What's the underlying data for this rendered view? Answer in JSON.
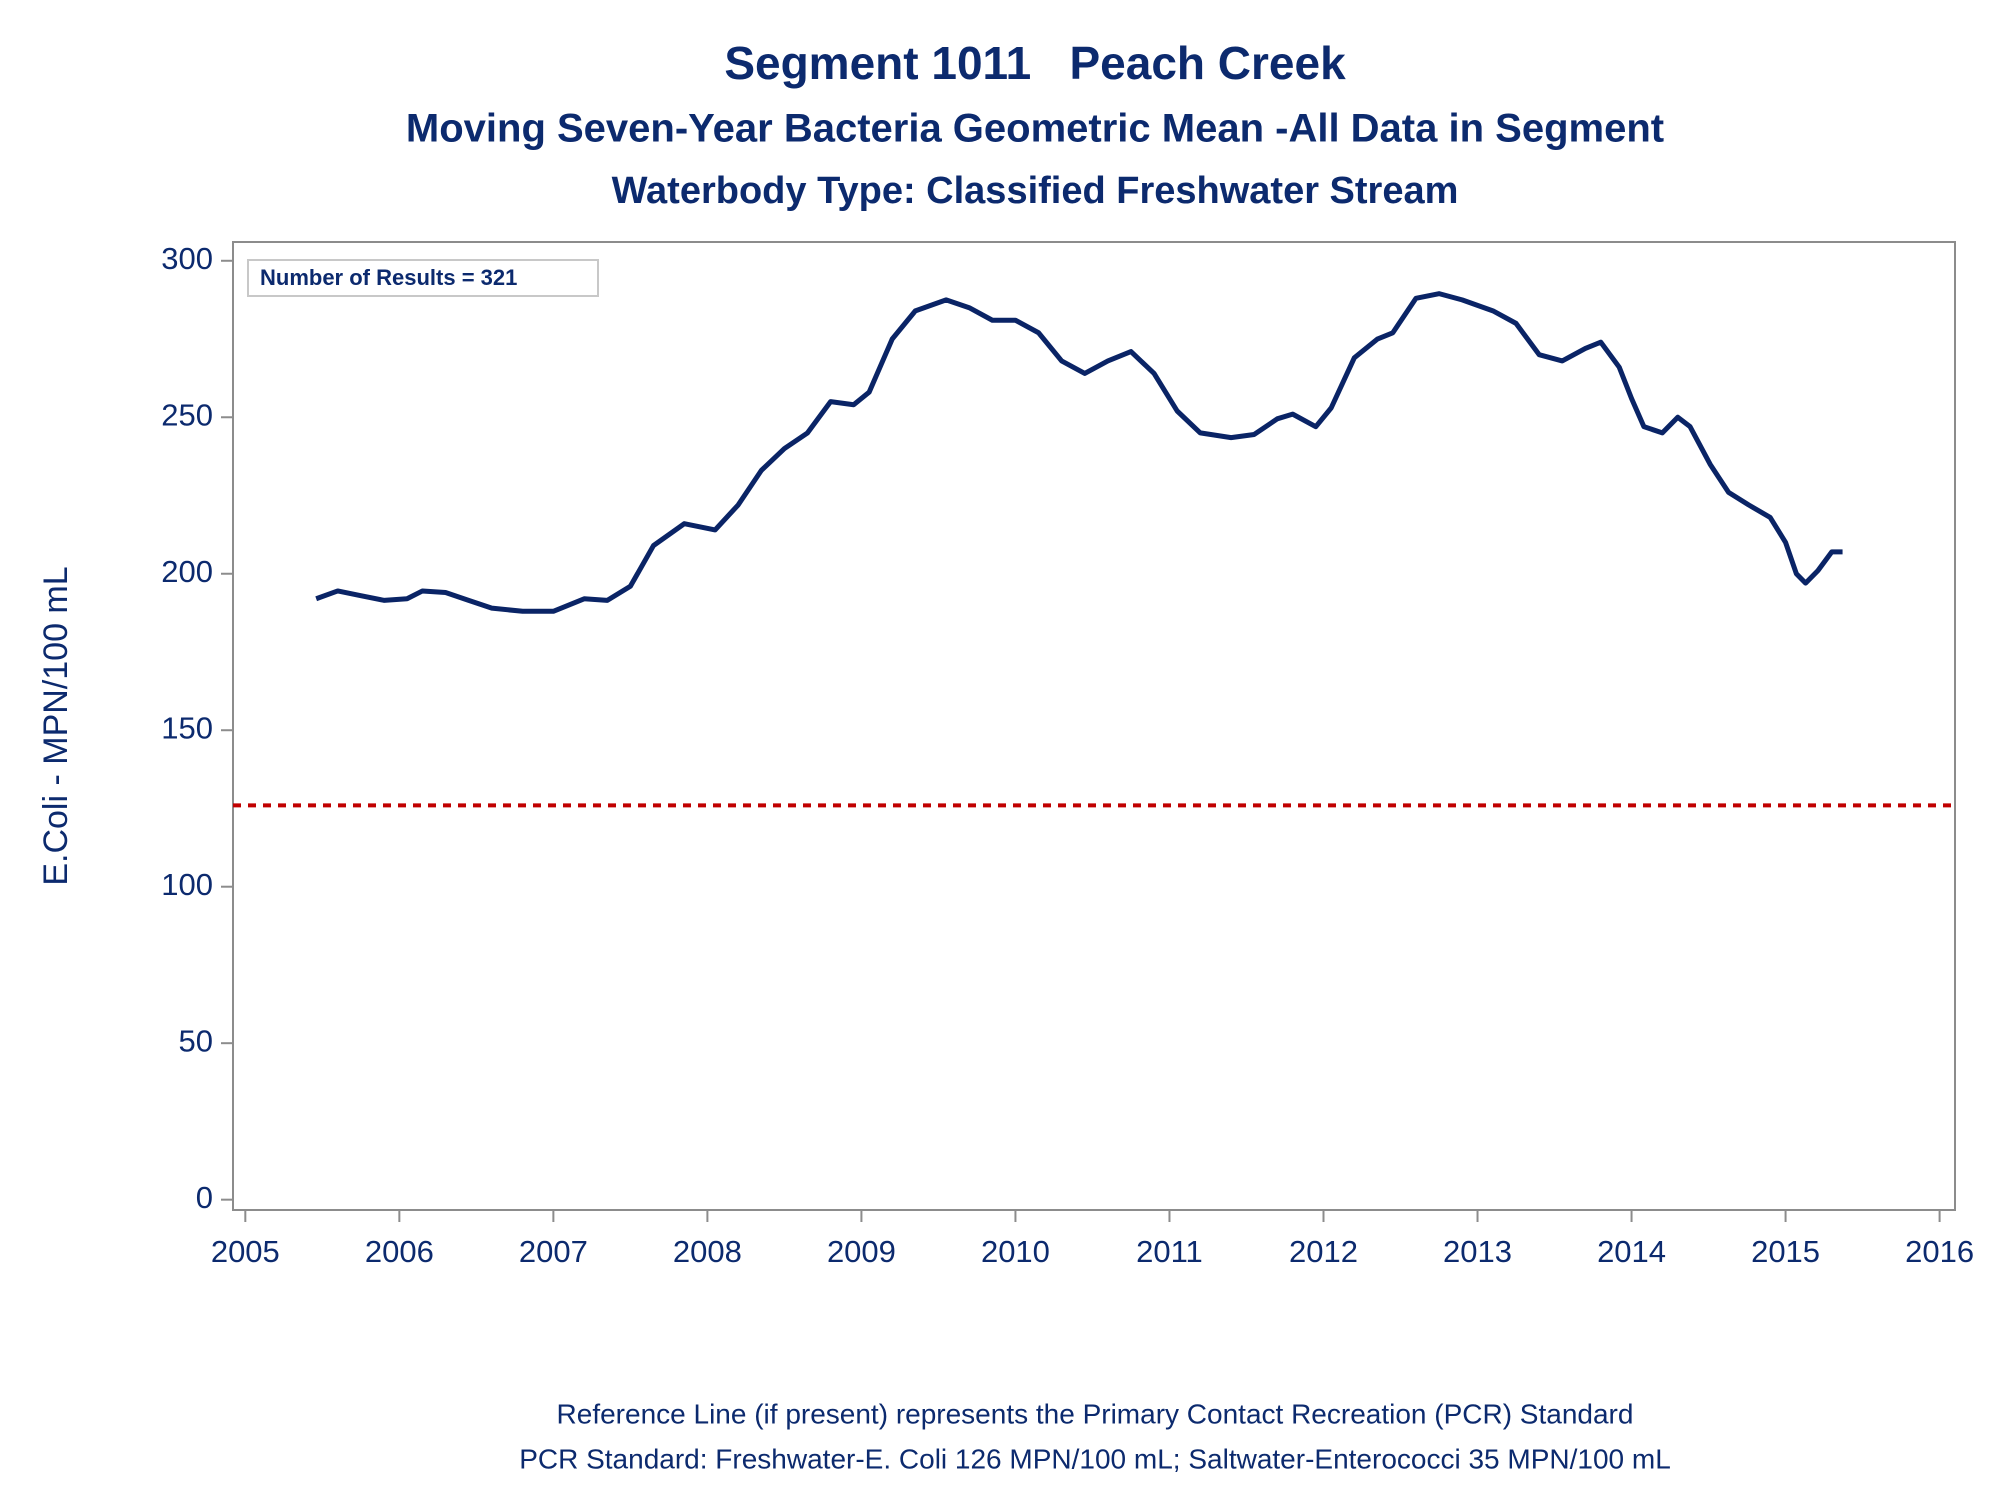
{
  "chart_data": {
    "type": "line",
    "title": "Segment 1011   Peach Creek",
    "subtitle": "Moving Seven-Year Bacteria Geometric Mean -All Data in Segment",
    "subtitle2": "Waterbody Type: Classified Freshwater Stream",
    "ylabel": "E.Coli - MPN/100 mL",
    "annotation": "Number of Results = 321",
    "footnotes": [
      "Reference Line (if present) represents the Primary Contact Recreation (PCR) Standard",
      "PCR Standard: Freshwater-E. Coli 126 MPN/100 mL; Saltwater-Enterococci 35 MPN/100 mL"
    ],
    "x": [
      2005.46,
      2005.6,
      2005.75,
      2005.9,
      2006.05,
      2006.15,
      2006.3,
      2006.45,
      2006.6,
      2006.8,
      2007.0,
      2007.2,
      2007.35,
      2007.5,
      2007.65,
      2007.85,
      2008.05,
      2008.2,
      2008.35,
      2008.5,
      2008.65,
      2008.8,
      2008.95,
      2009.05,
      2009.2,
      2009.35,
      2009.55,
      2009.7,
      2009.85,
      2010.0,
      2010.15,
      2010.3,
      2010.45,
      2010.6,
      2010.75,
      2010.9,
      2011.05,
      2011.2,
      2011.4,
      2011.55,
      2011.7,
      2011.8,
      2011.95,
      2012.05,
      2012.2,
      2012.35,
      2012.45,
      2012.6,
      2012.75,
      2012.9,
      2013.1,
      2013.25,
      2013.4,
      2013.55,
      2013.7,
      2013.8,
      2013.92,
      2014.0,
      2014.08,
      2014.2,
      2014.3,
      2014.38,
      2014.51,
      2014.63,
      2014.76,
      2014.9,
      2015.0,
      2015.07,
      2015.13,
      2015.21,
      2015.3,
      2015.37
    ],
    "series": [
      {
        "name": "Geometric Mean",
        "color": "#0a2466",
        "values": [
          192,
          194.5,
          193,
          191.5,
          192,
          194.5,
          194,
          191.5,
          189,
          188,
          188,
          192,
          191.5,
          196,
          209,
          216,
          214,
          222,
          233,
          240,
          245,
          255,
          254,
          258,
          275,
          284,
          287.5,
          285,
          281,
          281,
          277,
          268,
          264,
          268,
          271,
          264,
          252,
          245,
          243.5,
          244.5,
          249.5,
          251,
          247,
          253,
          269,
          275,
          277,
          288,
          289.5,
          287.5,
          284,
          280,
          270,
          268,
          272,
          274,
          266,
          256,
          247,
          245,
          250,
          247,
          235,
          226,
          222,
          218,
          210,
          200,
          197,
          201,
          207,
          207
        ]
      }
    ],
    "reference_line": {
      "value": 126,
      "color": "#c00000"
    },
    "xlim": [
      2004.92,
      2016.1
    ],
    "xticks": [
      2005,
      2006,
      2007,
      2008,
      2009,
      2010,
      2011,
      2012,
      2013,
      2014,
      2015,
      2016
    ],
    "ylim": [
      -3.3,
      306
    ],
    "yticks": [
      0,
      50,
      100,
      150,
      200,
      250,
      300
    ]
  }
}
